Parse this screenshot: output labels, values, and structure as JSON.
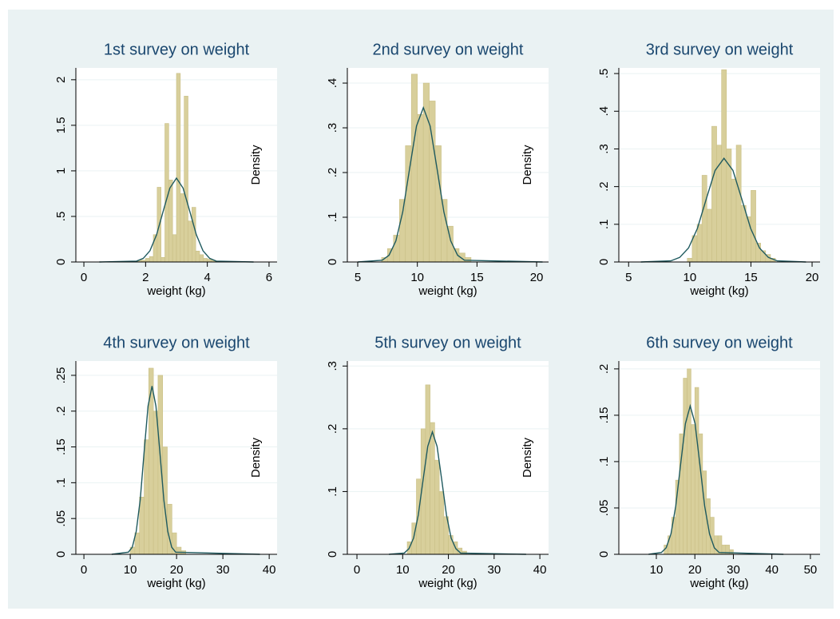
{
  "chart_data": [
    {
      "type": "histogram",
      "title": "1st survey on weight",
      "xlabel": "weight (kg)",
      "ylabel": "Density",
      "bins": [
        1.5,
        1.625,
        1.75,
        1.875,
        2.0,
        2.125,
        2.25,
        2.375,
        2.5,
        2.625,
        2.75,
        2.875,
        3.0,
        3.125,
        3.25,
        3.375,
        3.5,
        3.625,
        3.75,
        3.875,
        4.0,
        4.125,
        4.25,
        4.375,
        4.5
      ],
      "values": [
        0.01,
        0.01,
        0.02,
        0.02,
        0.04,
        0.06,
        0.3,
        0.82,
        0.05,
        1.52,
        0.9,
        0.3,
        2.07,
        0.75,
        1.82,
        0.45,
        0.6,
        0.12,
        0.08,
        0.04,
        0.03,
        0.02,
        0.01,
        0.01
      ],
      "color": "#d8cf9b",
      "density_curve": {
        "x": [
          0.5,
          1.71,
          1.925,
          2.14,
          2.355,
          2.57,
          2.785,
          3.0,
          3.215,
          3.43,
          3.645,
          3.86,
          4.075,
          4.29,
          5.5
        ],
        "values": [
          0,
          0.01,
          0.04,
          0.124,
          0.299,
          0.558,
          0.811,
          0.92,
          0.811,
          0.558,
          0.299,
          0.124,
          0.04,
          0.01,
          0
        ],
        "color": "#1f5a5f"
      },
      "xlim": [
        -0.26,
        6.26
      ],
      "ylim": [
        0,
        2.13
      ],
      "xticks": [
        0,
        2,
        4,
        6
      ],
      "yticks": [
        0,
        {
          "value": 0.5,
          "label": ".5"
        },
        1,
        1.5,
        2
      ],
      "grid": true
    },
    {
      "type": "histogram",
      "title": "2nd survey on weight",
      "xlabel": "weight (kg)",
      "ylabel": "Density",
      "bins": [
        7,
        7.5,
        8,
        8.5,
        9,
        9.5,
        10,
        10.5,
        11,
        11.5,
        12,
        12.5,
        13,
        13.5,
        14,
        14.5
      ],
      "values": [
        0.01,
        0.03,
        0.06,
        0.14,
        0.26,
        0.42,
        0.33,
        0.4,
        0.36,
        0.26,
        0.14,
        0.08,
        0.03,
        0.02,
        0.01
      ],
      "color": "#d8cf9b",
      "density_curve": {
        "x": [
          5,
          7.05,
          7.625,
          8.2,
          8.775,
          9.35,
          9.925,
          10.5,
          11.075,
          11.65,
          12.225,
          12.8,
          13.375,
          13.95,
          20.5
        ],
        "values": [
          0,
          0.004,
          0.015,
          0.047,
          0.112,
          0.209,
          0.304,
          0.345,
          0.304,
          0.209,
          0.112,
          0.047,
          0.015,
          0.004,
          0
        ],
        "color": "#1f5a5f"
      },
      "xlim": [
        4.13,
        21.0
      ],
      "ylim": [
        0,
        0.434
      ],
      "xticks": [
        5,
        10,
        15,
        20
      ],
      "yticks": [
        0,
        {
          "value": 0.1,
          "label": ".1"
        },
        {
          "value": 0.2,
          "label": ".2"
        },
        {
          "value": 0.3,
          "label": ".3"
        },
        {
          "value": 0.4,
          "label": ".4"
        }
      ],
      "grid": true
    },
    {
      "type": "histogram",
      "title": "3rd survey on weight",
      "xlabel": "weight (kg)",
      "bins": [
        9.8,
        10.2,
        10.6,
        11.0,
        11.4,
        11.8,
        12.2,
        12.6,
        13.0,
        13.4,
        13.8,
        14.2,
        14.6,
        15.0,
        15.4,
        15.8,
        16.2,
        16.6,
        17.0
      ],
      "values": [
        0.01,
        0.07,
        0.1,
        0.23,
        0.14,
        0.36,
        0.31,
        0.51,
        0.3,
        0.22,
        0.31,
        0.15,
        0.12,
        0.19,
        0.05,
        0.03,
        0.02,
        0.01
      ],
      "color": "#d8cf9b",
      "density_curve": {
        "x": [
          6,
          8.45,
          9.175,
          9.9,
          10.625,
          11.35,
          12.075,
          12.8,
          13.525,
          14.25,
          14.975,
          15.7,
          16.425,
          17.15,
          19.5
        ],
        "values": [
          0,
          0.003,
          0.012,
          0.037,
          0.089,
          0.167,
          0.243,
          0.275,
          0.243,
          0.167,
          0.089,
          0.037,
          0.012,
          0.003,
          0
        ],
        "color": "#1f5a5f"
      },
      "xlim": [
        4.2,
        20.65
      ],
      "ylim": [
        0,
        0.515
      ],
      "xticks": [
        5,
        10,
        15,
        20
      ],
      "yticks": [
        0,
        {
          "value": 0.1,
          "label": ".1"
        },
        {
          "value": 0.2,
          "label": ".2"
        },
        {
          "value": 0.3,
          "label": ".3"
        },
        {
          "value": 0.4,
          "label": ".4"
        },
        {
          "value": 0.5,
          "label": ".5"
        }
      ],
      "grid": true
    },
    {
      "type": "histogram",
      "title": "4th survey on weight",
      "xlabel": "weight (kg)",
      "ylabel": "Density",
      "bins": [
        10,
        11,
        12,
        13,
        14,
        15,
        16,
        17,
        18,
        19,
        20,
        21,
        22
      ],
      "values": [
        0.01,
        0.03,
        0.08,
        0.16,
        0.26,
        0.2,
        0.25,
        0.15,
        0.07,
        0.03,
        0.01,
        0.005
      ],
      "color": "#d8cf9b",
      "density_curve": {
        "x": [
          6,
          9.6,
          10.45,
          11.3,
          12.15,
          13.0,
          13.85,
          14.7,
          15.55,
          16.4,
          17.25,
          18.1,
          18.95,
          19.8,
          38
        ],
        "values": [
          0,
          0.003,
          0.01,
          0.032,
          0.076,
          0.143,
          0.207,
          0.235,
          0.207,
          0.143,
          0.076,
          0.032,
          0.01,
          0.003,
          0
        ],
        "color": "#1f5a5f"
      },
      "xlim": [
        -1.74,
        41.7
      ],
      "ylim": [
        0,
        0.27
      ],
      "xticks": [
        0,
        10,
        20,
        30,
        40
      ],
      "yticks": [
        0,
        {
          "value": 0.05,
          "label": ".05"
        },
        {
          "value": 0.1,
          "label": ".1"
        },
        {
          "value": 0.15,
          "label": ".15"
        },
        {
          "value": 0.2,
          "label": ".2"
        },
        {
          "value": 0.25,
          "label": ".25"
        }
      ],
      "grid": true
    },
    {
      "type": "histogram",
      "title": "5th survey on weight",
      "xlabel": "weight (kg)",
      "ylabel": "Density",
      "bins": [
        11,
        12,
        13,
        14,
        15,
        16,
        17,
        18,
        19,
        20,
        21,
        22,
        23,
        24
      ],
      "values": [
        0.02,
        0.05,
        0.12,
        0.2,
        0.27,
        0.21,
        0.15,
        0.1,
        0.06,
        0.03,
        0.02,
        0.01,
        0.005
      ],
      "color": "#d8cf9b",
      "density_curve": {
        "x": [
          7,
          10.35,
          11.375,
          12.4,
          13.425,
          14.45,
          15.475,
          16.5,
          17.525,
          18.55,
          19.575,
          20.6,
          21.625,
          22.65,
          37
        ],
        "values": [
          0,
          0.002,
          0.009,
          0.026,
          0.063,
          0.118,
          0.172,
          0.195,
          0.172,
          0.118,
          0.063,
          0.026,
          0.009,
          0.002,
          0
        ],
        "color": "#1f5a5f"
      },
      "xlim": [
        -2.1,
        41.9
      ],
      "ylim": [
        0,
        0.308
      ],
      "xticks": [
        0,
        10,
        20,
        30,
        40
      ],
      "yticks": [
        0,
        {
          "value": 0.1,
          "label": ".1"
        },
        {
          "value": 0.2,
          "label": ".2"
        },
        {
          "value": 0.3,
          "label": ".3"
        }
      ],
      "grid": true
    },
    {
      "type": "histogram",
      "title": "6th survey on weight",
      "xlabel": "weight (kg)",
      "bins": [
        12,
        13,
        14,
        15,
        16,
        17,
        18,
        19,
        20,
        21,
        22,
        23,
        24,
        25,
        26,
        27,
        28,
        29,
        30
      ],
      "values": [
        0.01,
        0.02,
        0.04,
        0.08,
        0.13,
        0.19,
        0.2,
        0.14,
        0.18,
        0.13,
        0.09,
        0.06,
        0.04,
        0.02,
        0.02,
        0.01,
        0.01,
        0.005
      ],
      "color": "#d8cf9b",
      "density_curve": {
        "x": [
          8,
          11.3,
          12.55,
          13.8,
          15.05,
          16.3,
          17.55,
          18.8,
          20.05,
          21.3,
          22.55,
          23.8,
          25.05,
          26.3,
          43
        ],
        "values": [
          0,
          0.002,
          0.007,
          0.022,
          0.052,
          0.097,
          0.141,
          0.16,
          0.141,
          0.097,
          0.052,
          0.022,
          0.007,
          0.002,
          0
        ],
        "color": "#1f5a5f"
      },
      "xlim": [
        0.26,
        52.5
      ],
      "ylim": [
        0,
        0.2085
      ],
      "xticks": [
        10,
        20,
        30,
        40,
        50
      ],
      "yticks": [
        0,
        {
          "value": 0.05,
          "label": ".05"
        },
        {
          "value": 0.1,
          "label": ".1"
        },
        {
          "value": 0.15,
          "label": ".15"
        },
        {
          "value": 0.2,
          "label": ".2"
        }
      ],
      "grid": true
    }
  ]
}
